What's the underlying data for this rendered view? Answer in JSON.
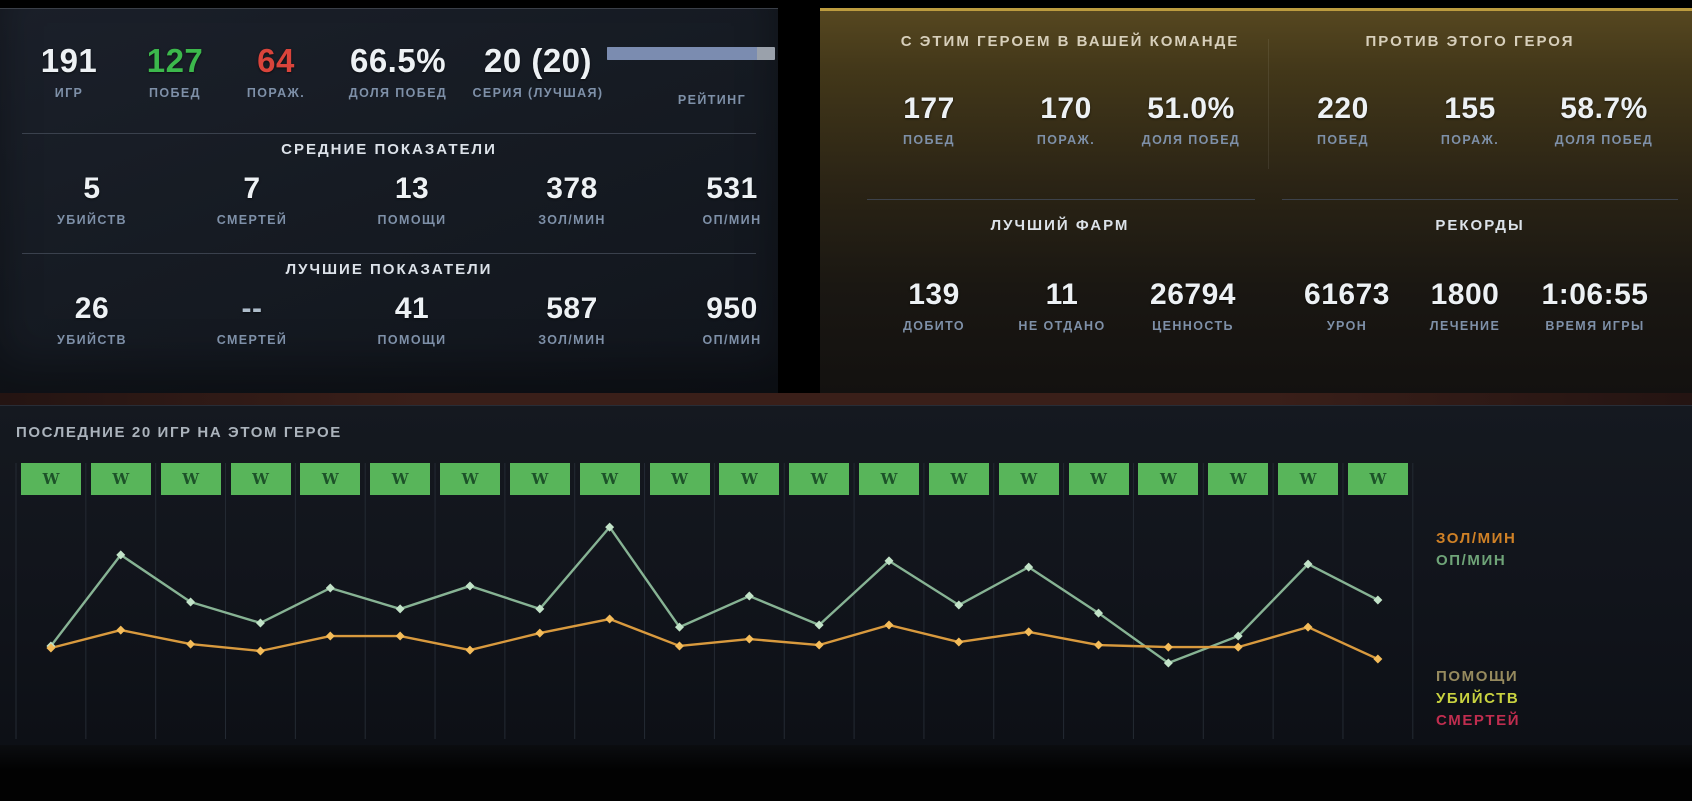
{
  "left_panel": {
    "summary": [
      {
        "value": "191",
        "label": "ИГР",
        "value_color": "#edf1f4"
      },
      {
        "value": "127",
        "label": "ПОБЕД",
        "value_color": "#3cb84c"
      },
      {
        "value": "64",
        "label": "ПОРАЖ.",
        "value_color": "#d9443b"
      },
      {
        "value": "66.5%",
        "label": "ДОЛЯ ПОБЕД",
        "value_color": "#edf1f4"
      },
      {
        "value": "20 (20)",
        "label": "СЕРИЯ (ЛУЧШАЯ)",
        "value_color": "#edf1f4"
      }
    ],
    "rating": {
      "label": "РЕЙТИНГ",
      "fill_percent": 89,
      "fill_color": "#7b8cb0",
      "track_color": "#9aa1ab"
    },
    "average": {
      "title": "СРЕДНИЕ ПОКАЗАТЕЛИ",
      "stats": [
        {
          "value": "5",
          "label": "УБИЙСТВ"
        },
        {
          "value": "7",
          "label": "СМЕРТЕЙ"
        },
        {
          "value": "13",
          "label": "ПОМОЩИ"
        },
        {
          "value": "378",
          "label": "ЗОЛ/МИН"
        },
        {
          "value": "531",
          "label": "ОП/МИН"
        }
      ]
    },
    "best": {
      "title": "ЛУЧШИЕ ПОКАЗАТЕЛИ",
      "stats": [
        {
          "value": "26",
          "label": "УБИЙСТВ"
        },
        {
          "value": "--",
          "label": "СМЕРТЕЙ",
          "value_color": "#aebdcb"
        },
        {
          "value": "41",
          "label": "ПОМОЩИ"
        },
        {
          "value": "587",
          "label": "ЗОЛ/МИН"
        },
        {
          "value": "950",
          "label": "ОП/МИН"
        }
      ]
    }
  },
  "right_panel": {
    "with_hero": {
      "title": "С ЭТИМ ГЕРОЕМ В ВАШЕЙ КОМАНДЕ",
      "stats": [
        {
          "value": "177",
          "label": "ПОБЕД"
        },
        {
          "value": "170",
          "label": "ПОРАЖ."
        },
        {
          "value": "51.0%",
          "label": "ДОЛЯ ПОБЕД"
        }
      ]
    },
    "against_hero": {
      "title": "ПРОТИВ ЭТОГО ГЕРОЯ",
      "stats": [
        {
          "value": "220",
          "label": "ПОБЕД"
        },
        {
          "value": "155",
          "label": "ПОРАЖ."
        },
        {
          "value": "58.7%",
          "label": "ДОЛЯ ПОБЕД"
        }
      ]
    },
    "best_farm": {
      "title": "ЛУЧШИЙ ФАРМ",
      "stats": [
        {
          "value": "139",
          "label": "ДОБИТО"
        },
        {
          "value": "11",
          "label": "НЕ ОТДАНО"
        },
        {
          "value": "26794",
          "label": "ЦЕННОСТЬ"
        }
      ]
    },
    "records": {
      "title": "РЕКОРДЫ",
      "stats": [
        {
          "value": "61673",
          "label": "УРОН"
        },
        {
          "value": "1800",
          "label": "ЛЕЧЕНИЕ"
        },
        {
          "value": "1:06:55",
          "label": "ВРЕМЯ ИГРЫ"
        }
      ]
    }
  },
  "recent_games": {
    "title": "ПОСЛЕДНИЕ 20 ИГР НА ЭТОМ ГЕРОЕ",
    "win_box_color": "#58b55a",
    "win_letter_color": "#1d5229",
    "chart_data": {
      "type": "line",
      "title": "ПОСЛЕДНИЕ 20 ИГР НА ЭТОМ ГЕРОЕ",
      "x": [
        1,
        2,
        3,
        4,
        5,
        6,
        7,
        8,
        9,
        10,
        11,
        12,
        13,
        14,
        15,
        16,
        17,
        18,
        19,
        20
      ],
      "results": [
        "W",
        "W",
        "W",
        "W",
        "W",
        "W",
        "W",
        "W",
        "W",
        "W",
        "W",
        "W",
        "W",
        "W",
        "W",
        "W",
        "W",
        "W",
        "W",
        "W"
      ],
      "series": [
        {
          "name": "ЗОЛ/МИН",
          "color": "#d99a3e",
          "point_color": "#f4bc5a",
          "legend_color": "#cf8126",
          "values": [
            424,
            502,
            441,
            411,
            476,
            476,
            415,
            489,
            550,
            433,
            463,
            437,
            524,
            450,
            494,
            437,
            428,
            428,
            515,
            376
          ]
        },
        {
          "name": "ОП/МИН",
          "color": "#87b394",
          "point_color": "#c2e3c8",
          "legend_color": "#6fa478",
          "values": [
            433,
            829,
            624,
            533,
            685,
            594,
            694,
            594,
            950,
            515,
            650,
            524,
            803,
            611,
            776,
            576,
            359,
            476,
            789,
            633
          ]
        }
      ],
      "legend_inactive": [
        {
          "name": "ПОМОЩИ",
          "color": "#968a5e"
        },
        {
          "name": "УБИЙСТВ",
          "color": "#c9d340"
        },
        {
          "name": "СМЕРТЕЙ",
          "color": "#c02d4f"
        }
      ],
      "ylim": [
        150,
        1194
      ],
      "grid": "vertical",
      "legend_position": "right"
    }
  }
}
